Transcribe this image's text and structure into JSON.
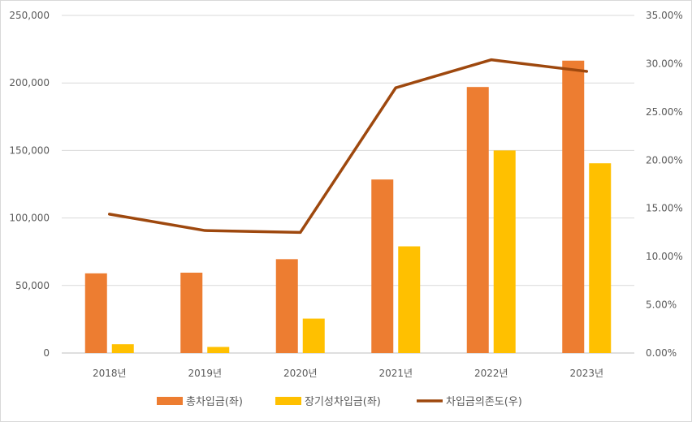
{
  "chart_data": {
    "type": "bar",
    "categories": [
      "2018년",
      "2019년",
      "2020년",
      "2021년",
      "2022년",
      "2023년"
    ],
    "series": [
      {
        "name": "총차입금(좌)",
        "type": "bar",
        "axis": "left",
        "color": "#ED7D31",
        "values": [
          59000,
          59500,
          69500,
          128500,
          197000,
          216500
        ]
      },
      {
        "name": "장기성차입금(좌)",
        "type": "bar",
        "axis": "left",
        "color": "#FFC000",
        "values": [
          6500,
          4500,
          25500,
          79000,
          150000,
          140500
        ]
      },
      {
        "name": "차입금의존도(우)",
        "type": "line",
        "axis": "right",
        "color": "#9E480E",
        "values": [
          14.4,
          12.7,
          12.5,
          27.5,
          30.4,
          29.2
        ]
      }
    ],
    "y_left": {
      "ylim": [
        0,
        250000
      ],
      "ticks": [
        0,
        50000,
        100000,
        150000,
        200000,
        250000
      ],
      "tick_labels": [
        "0",
        "50,000",
        "100,000",
        "150,000",
        "200,000",
        "250,000"
      ]
    },
    "y_right": {
      "ylim": [
        0,
        35
      ],
      "ticks": [
        0,
        5,
        10,
        15,
        20,
        25,
        30,
        35
      ],
      "tick_labels": [
        "0.00%",
        "5.00%",
        "10.00%",
        "15.00%",
        "20.00%",
        "25.00%",
        "30.00%",
        "35.00%"
      ]
    },
    "grid": true,
    "legend_position": "bottom"
  }
}
